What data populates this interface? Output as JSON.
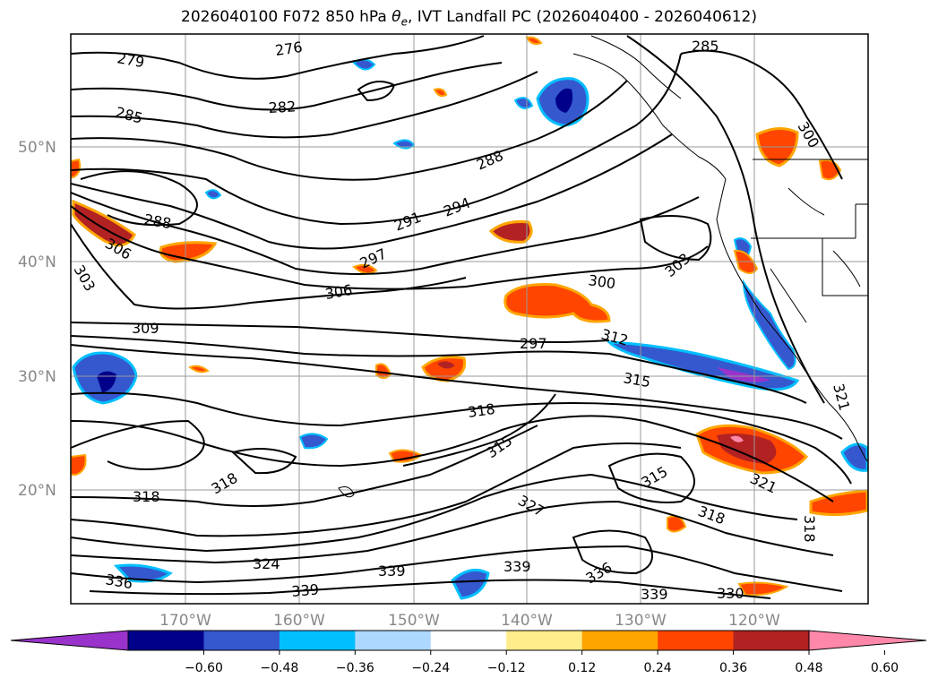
{
  "title": {
    "prefix": "2026040100 F072 850 hPa ",
    "theta": "θ",
    "sub": "e",
    "suffix": ", IVT Landfall PC (2026040400 - 2026040612)"
  },
  "axes": {
    "lat_labels": [
      "50°N",
      "40°N",
      "30°N",
      "20°N"
    ],
    "lon_labels": [
      "170°W",
      "160°W",
      "150°W",
      "140°W",
      "130°W",
      "120°W"
    ]
  },
  "contour_labels": [
    "279",
    "276",
    "285",
    "282",
    "285",
    "300",
    "288",
    "294",
    "291",
    "288",
    "306",
    "297",
    "303",
    "303",
    "300",
    "309",
    "306",
    "297",
    "312",
    "315",
    "318",
    "315",
    "321",
    "318",
    "318",
    "321",
    "315",
    "327",
    "318",
    "324",
    "318",
    "336",
    "339",
    "339",
    "339",
    "336",
    "339",
    "330"
  ],
  "colorbar": {
    "colors": [
      "#9933cc",
      "#00008b",
      "#3558cf",
      "#00bfff",
      "#add8ff",
      "#ffffff",
      "#ffec8b",
      "#ffa500",
      "#ff4500",
      "#b22222",
      "#ff88aa"
    ],
    "ticks": [
      "−0.60",
      "−0.48",
      "−0.36",
      "−0.24",
      "−0.12",
      "0.12",
      "0.24",
      "0.36",
      "0.48",
      "0.60"
    ]
  }
}
